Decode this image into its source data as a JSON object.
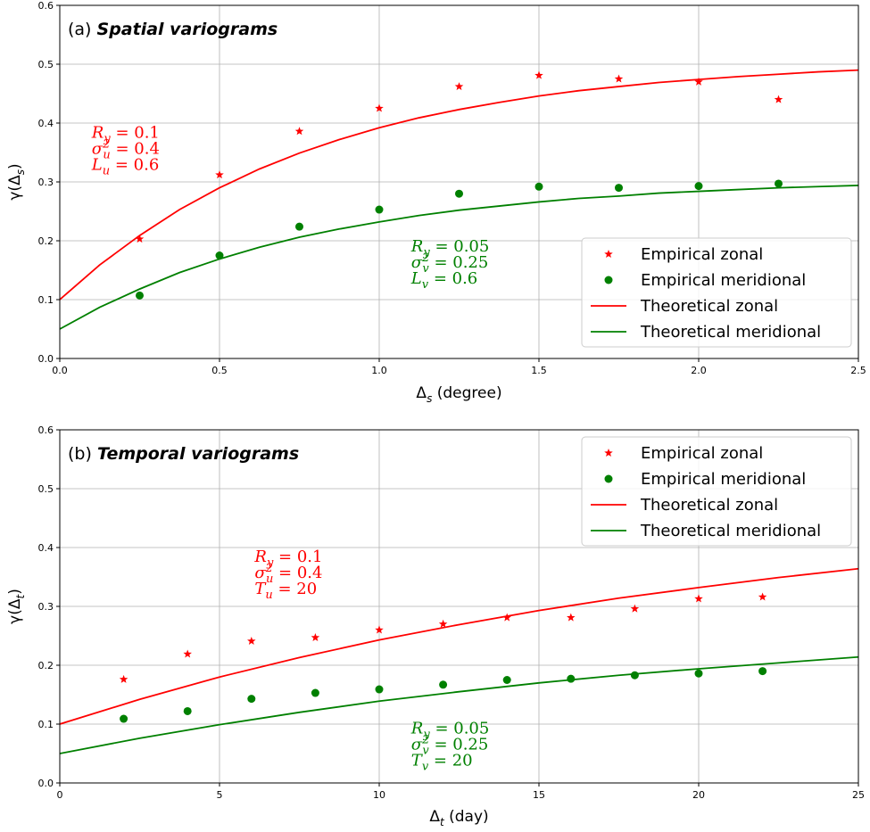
{
  "chart_data": [
    {
      "type": "scatter",
      "title_prefix": "(a) ",
      "title_emphasis": "Spatial variograms",
      "xlabel_symbol": "Δ",
      "xlabel_sub": "s",
      "xlabel_unit": " (degree)",
      "ylabel_prefix": "γ(Δ",
      "ylabel_sub": "s",
      "ylabel_suffix": ")",
      "xlim": [
        0,
        2.5
      ],
      "ylim": [
        0,
        0.6
      ],
      "xticks": [
        "0.0",
        "0.5",
        "1.0",
        "1.5",
        "2.0",
        "2.5"
      ],
      "yticks": [
        "0.0",
        "0.1",
        "0.2",
        "0.3",
        "0.4",
        "0.5",
        "0.6"
      ],
      "grid": true,
      "legend_position": "lower-right",
      "series": [
        {
          "name": "Empirical zonal",
          "kind": "marker",
          "marker": "star",
          "color": "#ff0000",
          "x": [
            0.25,
            0.5,
            0.75,
            1.0,
            1.25,
            1.5,
            1.75,
            2.0,
            2.25
          ],
          "y": [
            0.203,
            0.312,
            0.386,
            0.425,
            0.462,
            0.481,
            0.475,
            0.47,
            0.44
          ]
        },
        {
          "name": "Empirical meridional",
          "kind": "marker",
          "marker": "circle",
          "color": "#008000",
          "x": [
            0.25,
            0.5,
            0.75,
            1.0,
            1.25,
            1.5,
            1.75,
            2.0,
            2.25
          ],
          "y": [
            0.107,
            0.175,
            0.224,
            0.253,
            0.28,
            0.292,
            0.29,
            0.293,
            0.297
          ]
        },
        {
          "name": "Theoretical zonal",
          "kind": "line",
          "color": "#ff0000",
          "x": [
            0,
            0.125,
            0.25,
            0.375,
            0.5,
            0.625,
            0.75,
            0.875,
            1.0,
            1.125,
            1.25,
            1.375,
            1.5,
            1.625,
            1.75,
            1.875,
            2.0,
            2.125,
            2.25,
            2.375,
            2.5
          ],
          "y": [
            0.1,
            0.159,
            0.209,
            0.253,
            0.29,
            0.322,
            0.349,
            0.372,
            0.392,
            0.409,
            0.423,
            0.435,
            0.446,
            0.455,
            0.462,
            0.469,
            0.474,
            0.479,
            0.483,
            0.487,
            0.49
          ]
        },
        {
          "name": "Theoretical meridional",
          "kind": "line",
          "color": "#008000",
          "x": [
            0,
            0.125,
            0.25,
            0.375,
            0.5,
            0.625,
            0.75,
            0.875,
            1.0,
            1.125,
            1.25,
            1.375,
            1.5,
            1.625,
            1.75,
            1.875,
            2.0,
            2.125,
            2.25,
            2.375,
            2.5
          ],
          "y": [
            0.05,
            0.087,
            0.118,
            0.146,
            0.169,
            0.189,
            0.206,
            0.22,
            0.232,
            0.243,
            0.252,
            0.259,
            0.266,
            0.272,
            0.276,
            0.281,
            0.284,
            0.287,
            0.29,
            0.292,
            0.294
          ]
        }
      ],
      "annotations": [
        {
          "color": "#ff0000",
          "x": 0.1,
          "lines": [
            "R_y = 0.1",
            "σ_u^2 = 0.4",
            "L_u = 0.6"
          ],
          "y_top": 0.375
        },
        {
          "color": "#008000",
          "x": 1.1,
          "lines": [
            "R_y = 0.05",
            "σ_v^2 = 0.25",
            "L_v = 0.6"
          ],
          "y_top": 0.182
        }
      ]
    },
    {
      "type": "scatter",
      "title_prefix": "(b) ",
      "title_emphasis": "Temporal variograms",
      "xlabel_symbol": "Δ",
      "xlabel_sub": "t",
      "xlabel_unit": " (day)",
      "ylabel_prefix": "γ(Δ",
      "ylabel_sub": "t",
      "ylabel_suffix": ")",
      "xlim": [
        0,
        25
      ],
      "ylim": [
        0,
        0.6
      ],
      "xticks": [
        "0",
        "5",
        "10",
        "15",
        "20",
        "25"
      ],
      "yticks": [
        "0.0",
        "0.1",
        "0.2",
        "0.3",
        "0.4",
        "0.5",
        "0.6"
      ],
      "grid": true,
      "legend_position": "upper-right",
      "series": [
        {
          "name": "Empirical zonal",
          "kind": "marker",
          "marker": "star",
          "color": "#ff0000",
          "x": [
            2,
            4,
            6,
            8,
            10,
            12,
            14,
            16,
            18,
            20,
            22
          ],
          "y": [
            0.176,
            0.219,
            0.241,
            0.247,
            0.26,
            0.27,
            0.281,
            0.281,
            0.296,
            0.313,
            0.316
          ]
        },
        {
          "name": "Empirical meridional",
          "kind": "marker",
          "marker": "circle",
          "color": "#008000",
          "x": [
            2,
            4,
            6,
            8,
            10,
            12,
            14,
            16,
            18,
            20,
            22
          ],
          "y": [
            0.109,
            0.122,
            0.143,
            0.153,
            0.159,
            0.167,
            0.175,
            0.177,
            0.183,
            0.186,
            0.19
          ]
        },
        {
          "name": "Theoretical zonal",
          "kind": "line",
          "color": "#ff0000",
          "x": [
            0,
            2.5,
            5,
            7.5,
            10,
            12.5,
            15,
            17.5,
            20,
            22.5,
            25
          ],
          "y": [
            0.1,
            0.142,
            0.18,
            0.213,
            0.243,
            0.269,
            0.293,
            0.314,
            0.332,
            0.349,
            0.364
          ]
        },
        {
          "name": "Theoretical meridional",
          "kind": "line",
          "color": "#008000",
          "x": [
            0,
            2.5,
            5,
            7.5,
            10,
            12.5,
            15,
            17.5,
            20,
            22.5,
            25
          ],
          "y": [
            0.05,
            0.076,
            0.099,
            0.12,
            0.139,
            0.155,
            0.17,
            0.183,
            0.194,
            0.204,
            0.214
          ]
        }
      ],
      "annotations": [
        {
          "color": "#ff0000",
          "x": 6.1,
          "lines": [
            "R_y = 0.1",
            "σ_u^2 = 0.4",
            "T_u = 20"
          ],
          "y_top": 0.376
        },
        {
          "color": "#008000",
          "x": 11.0,
          "lines": [
            "R_y = 0.05",
            "σ_v^2 = 0.25",
            "T_v = 20"
          ],
          "y_top": 0.084
        }
      ]
    }
  ]
}
